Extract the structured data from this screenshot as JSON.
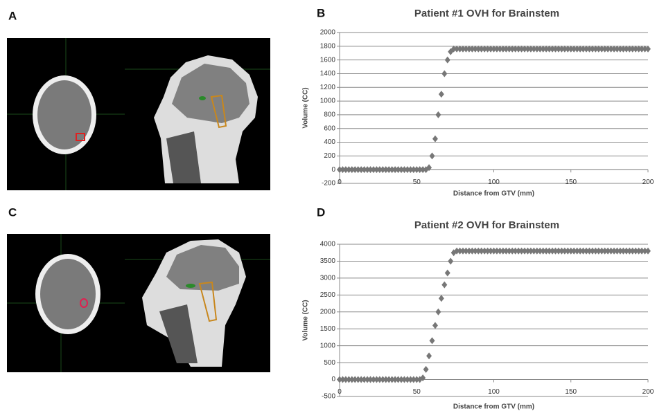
{
  "panel_labels": [
    "A",
    "B",
    "C",
    "D"
  ],
  "chart_data": [
    {
      "type": "scatter",
      "title": "Patient #1 OVH for Brainstem",
      "x_label": "Distance from GTV (mm)",
      "y_label": "Volume (CC)",
      "xlim": [
        0,
        200
      ],
      "xticks": [
        0,
        50,
        100,
        150,
        200
      ],
      "ylim": [
        -200,
        2000
      ],
      "yticks": [
        -200,
        0,
        200,
        400,
        600,
        800,
        1000,
        1200,
        1400,
        1600,
        1800,
        2000
      ],
      "grid": true,
      "color": "#777777",
      "x": [
        0,
        2,
        4,
        6,
        8,
        10,
        12,
        14,
        16,
        18,
        20,
        22,
        24,
        26,
        28,
        30,
        32,
        34,
        36,
        38,
        40,
        42,
        44,
        46,
        48,
        50,
        52,
        54,
        56,
        58,
        60,
        62,
        64,
        66,
        68,
        70,
        72,
        74,
        76,
        78,
        80,
        82,
        84,
        86,
        88,
        90,
        92,
        94,
        96,
        98,
        100,
        102,
        104,
        106,
        108,
        110,
        112,
        114,
        116,
        118,
        120,
        122,
        124,
        126,
        128,
        130,
        132,
        134,
        136,
        138,
        140,
        142,
        144,
        146,
        148,
        150,
        152,
        154,
        156,
        158,
        160,
        162,
        164,
        166,
        168,
        170,
        172,
        174,
        176,
        178,
        180,
        182,
        184,
        186,
        188,
        190,
        192,
        194,
        196,
        198,
        200
      ],
      "values": [
        0,
        0,
        0,
        0,
        0,
        0,
        0,
        0,
        0,
        0,
        0,
        0,
        0,
        0,
        0,
        0,
        0,
        0,
        0,
        0,
        0,
        0,
        0,
        0,
        0,
        0,
        0,
        0,
        0,
        30,
        200,
        450,
        800,
        1100,
        1400,
        1600,
        1720,
        1760,
        1760,
        1760,
        1760,
        1760,
        1760,
        1760,
        1760,
        1760,
        1760,
        1760,
        1760,
        1760,
        1760,
        1760,
        1760,
        1760,
        1760,
        1760,
        1760,
        1760,
        1760,
        1760,
        1760,
        1760,
        1760,
        1760,
        1760,
        1760,
        1760,
        1760,
        1760,
        1760,
        1760,
        1760,
        1760,
        1760,
        1760,
        1760,
        1760,
        1760,
        1760,
        1760,
        1760,
        1760,
        1760,
        1760,
        1760,
        1760,
        1760,
        1760,
        1760,
        1760,
        1760,
        1760,
        1760,
        1760,
        1760,
        1760,
        1760,
        1760,
        1760,
        1760,
        1760
      ]
    },
    {
      "type": "scatter",
      "title": "Patient #2 OVH for Brainstem",
      "x_label": "Distance from GTV (mm)",
      "y_label": "Volume (CC)",
      "xlim": [
        0,
        200
      ],
      "xticks": [
        0,
        50,
        100,
        150,
        200
      ],
      "ylim": [
        -500,
        4000
      ],
      "yticks": [
        -500,
        0,
        500,
        1000,
        1500,
        2000,
        2500,
        3000,
        3500,
        4000
      ],
      "grid": true,
      "color": "#777777",
      "x": [
        0,
        2,
        4,
        6,
        8,
        10,
        12,
        14,
        16,
        18,
        20,
        22,
        24,
        26,
        28,
        30,
        32,
        34,
        36,
        38,
        40,
        42,
        44,
        46,
        48,
        50,
        52,
        54,
        56,
        58,
        60,
        62,
        64,
        66,
        68,
        70,
        72,
        74,
        76,
        78,
        80,
        82,
        84,
        86,
        88,
        90,
        92,
        94,
        96,
        98,
        100,
        102,
        104,
        106,
        108,
        110,
        112,
        114,
        116,
        118,
        120,
        122,
        124,
        126,
        128,
        130,
        132,
        134,
        136,
        138,
        140,
        142,
        144,
        146,
        148,
        150,
        152,
        154,
        156,
        158,
        160,
        162,
        164,
        166,
        168,
        170,
        172,
        174,
        176,
        178,
        180,
        182,
        184,
        186,
        188,
        190,
        192,
        194,
        196,
        198,
        200
      ],
      "values": [
        0,
        0,
        0,
        0,
        0,
        0,
        0,
        0,
        0,
        0,
        0,
        0,
        0,
        0,
        0,
        0,
        0,
        0,
        0,
        0,
        0,
        0,
        0,
        0,
        0,
        0,
        0,
        50,
        300,
        700,
        1150,
        1600,
        2000,
        2400,
        2800,
        3150,
        3500,
        3750,
        3800,
        3800,
        3800,
        3800,
        3800,
        3800,
        3800,
        3800,
        3800,
        3800,
        3800,
        3800,
        3800,
        3800,
        3800,
        3800,
        3800,
        3800,
        3800,
        3800,
        3800,
        3800,
        3800,
        3800,
        3800,
        3800,
        3800,
        3800,
        3800,
        3800,
        3800,
        3800,
        3800,
        3800,
        3800,
        3800,
        3800,
        3800,
        3800,
        3800,
        3800,
        3800,
        3800,
        3800,
        3800,
        3800,
        3800,
        3800,
        3800,
        3800,
        3800,
        3800,
        3800,
        3800,
        3800,
        3800,
        3800,
        3800,
        3800,
        3800,
        3800,
        3800,
        3800
      ]
    }
  ]
}
